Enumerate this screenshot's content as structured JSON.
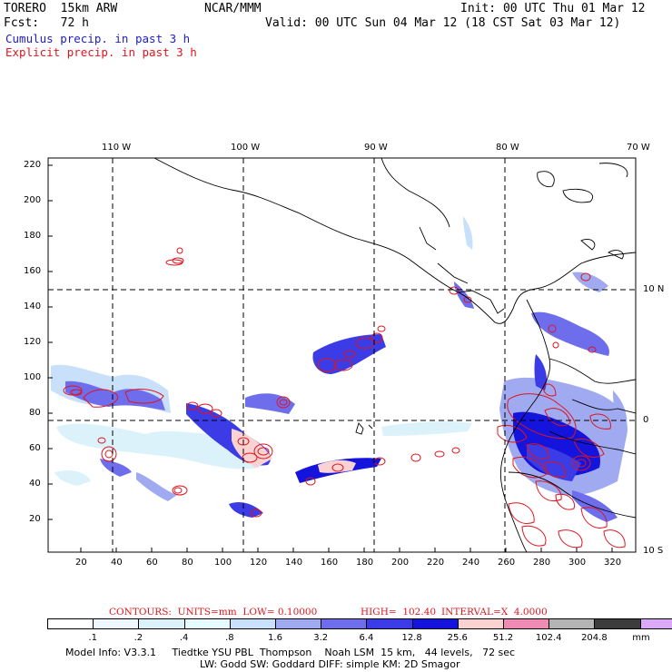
{
  "header": {
    "model": "TORERO  15km ARW",
    "org": "NCAR/MMM",
    "init": "Init: 00 UTC Thu 01 Mar 12",
    "fcst": "Fcst:   72 h",
    "valid": "Valid: 00 UTC Sun 04 Mar 12 (18 CST Sat 03 Mar 12)"
  },
  "legend": {
    "cumulus": "Cumulus precip. in past 3 h",
    "explicit": "Explicit precip. in past 3 h",
    "cumulus_color": "#1c1cc8",
    "explicit_color": "#e0141e"
  },
  "axes": {
    "top_lon_labels": [
      "110 W",
      "100 W",
      "90 W",
      "80 W",
      "70 W"
    ],
    "right_lat_labels": [
      "10 N",
      "0",
      "10 S"
    ],
    "left_ticks": [
      "220",
      "200",
      "180",
      "160",
      "140",
      "120",
      "100",
      "80",
      "60",
      "40",
      "20"
    ],
    "bottom_ticks": [
      "20",
      "40",
      "60",
      "80",
      "100",
      "120",
      "140",
      "160",
      "180",
      "200",
      "220",
      "240",
      "260",
      "280",
      "300",
      "320"
    ]
  },
  "contours": {
    "label": "CONTOURS:  UNITS=mm  LOW= 0.10000",
    "high": "HIGH=  102.40",
    "interval": "INTERVAL=X  4.0000"
  },
  "colorbar": {
    "labels": [
      ".1",
      ".2",
      ".4",
      ".8",
      "1.6",
      "3.2",
      "6.4",
      "12.8",
      "25.6",
      "51.2",
      "102.4",
      "204.8"
    ],
    "unit": "mm",
    "colors": [
      "#ffffff",
      "#eef6ff",
      "#dcf2fa",
      "#e6fbff",
      "#c8e0fa",
      "#a0aaf0",
      "#6e6eec",
      "#3c3ce6",
      "#1414dc",
      "#fad2d2",
      "#f08cb4",
      "#b4b4b4",
      "#3c3c3c",
      "#dca8f8"
    ]
  },
  "footer": {
    "line1": "Model Info: V3.3.1     Tiedtke YSU PBL  Thompson    Noah LSM  15 km,   44 levels,   72 sec",
    "line2": "LW: Godd SW: Goddard DIFF: simple KM: 2D Smagor"
  }
}
